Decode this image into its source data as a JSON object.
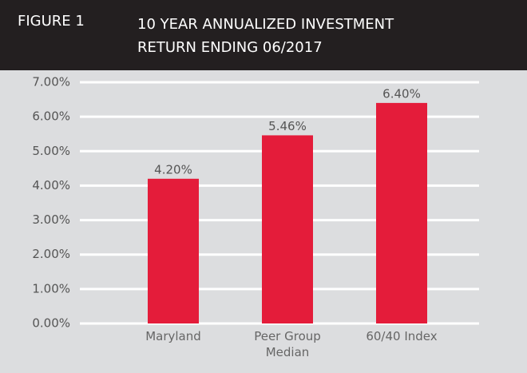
{
  "chart_data": {
    "type": "bar",
    "figure_label": "FIGURE 1",
    "title": [
      "10 YEAR ANNUALIZED INVESTMENT",
      "RETURN ENDING 06/2017"
    ],
    "categories": [
      "Maryland",
      "Peer Group Median",
      "60/40 Index"
    ],
    "values": [
      4.2,
      5.46,
      6.4
    ],
    "value_labels": [
      "4.20%",
      "5.46%",
      "6.40%"
    ],
    "color": "#e41c3a",
    "ylim": [
      0,
      7
    ],
    "yticks": [
      {
        "value": 0,
        "label": "0.00%"
      },
      {
        "value": 1,
        "label": "1.00%"
      },
      {
        "value": 2,
        "label": "2.00%"
      },
      {
        "value": 3,
        "label": "3.00%"
      },
      {
        "value": 4,
        "label": "4.00%"
      },
      {
        "value": 5,
        "label": "5.00%"
      },
      {
        "value": 6,
        "label": "6.00%"
      },
      {
        "value": 7,
        "label": "7.00%"
      }
    ],
    "grid": true
  }
}
